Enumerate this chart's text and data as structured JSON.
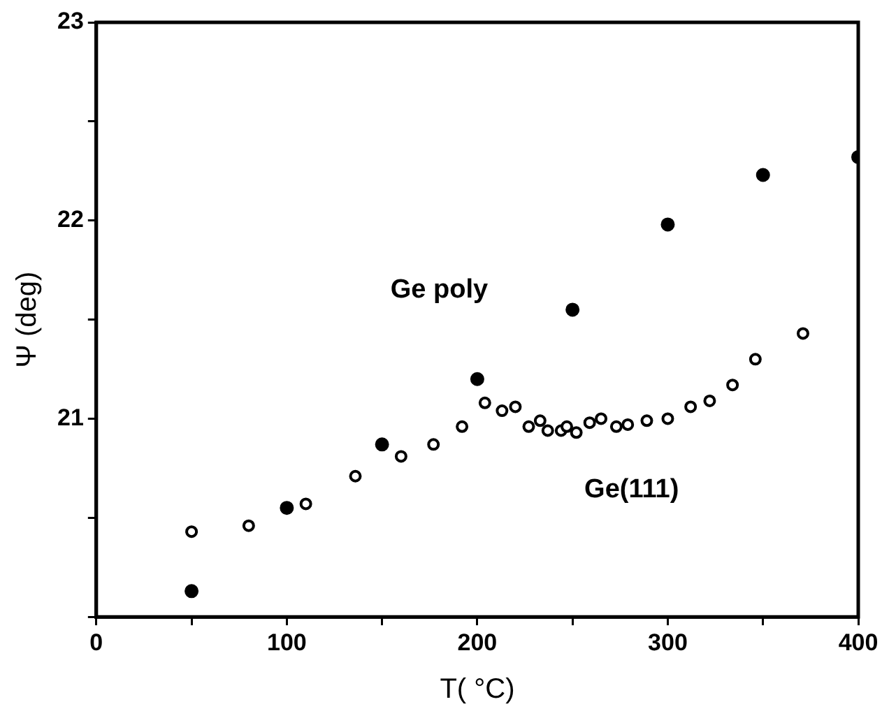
{
  "chart_data": {
    "type": "scatter",
    "xlabel": "T( °C)",
    "ylabel": "Ψ (deg)",
    "xlim": [
      0,
      400
    ],
    "xticks": [
      0,
      {
        "value": 50,
        "label": null
      },
      100,
      {
        "value": 150,
        "label": null
      },
      200,
      {
        "value": 250,
        "label": null
      },
      300,
      {
        "value": 350,
        "label": null
      },
      400
    ],
    "ylim": [
      20,
      23
    ],
    "yticks": [
      {
        "value": 20,
        "label": null
      },
      {
        "value": 20.5,
        "label": null
      },
      21,
      {
        "value": 21.5,
        "label": null
      },
      22,
      {
        "value": 22.5,
        "label": null
      },
      23
    ],
    "grid": false,
    "legend": false,
    "marker": "circle",
    "series": [
      {
        "name": "Ge poly",
        "color": "#000000",
        "x": [
          50,
          100,
          150,
          200,
          250,
          300,
          350,
          400
        ],
        "values": [
          20.13,
          20.55,
          20.87,
          21.2,
          21.55,
          21.98,
          22.23,
          22.32
        ]
      },
      {
        "name": "Ge(111)",
        "color": "#000000",
        "x": [
          50,
          80,
          110,
          136,
          160,
          177,
          192,
          204,
          213,
          220,
          227,
          233,
          237,
          244,
          247,
          252,
          259,
          265,
          273,
          279,
          289,
          300,
          312,
          322,
          334,
          346,
          371
        ],
        "values": [
          20.43,
          20.46,
          20.57,
          20.71,
          20.81,
          20.87,
          20.96,
          21.08,
          21.04,
          21.06,
          20.96,
          20.99,
          20.94,
          20.94,
          20.96,
          20.93,
          20.98,
          21.0,
          20.96,
          20.97,
          20.99,
          21.0,
          21.06,
          21.09,
          21.17,
          21.3,
          21.43
        ]
      }
    ]
  }
}
